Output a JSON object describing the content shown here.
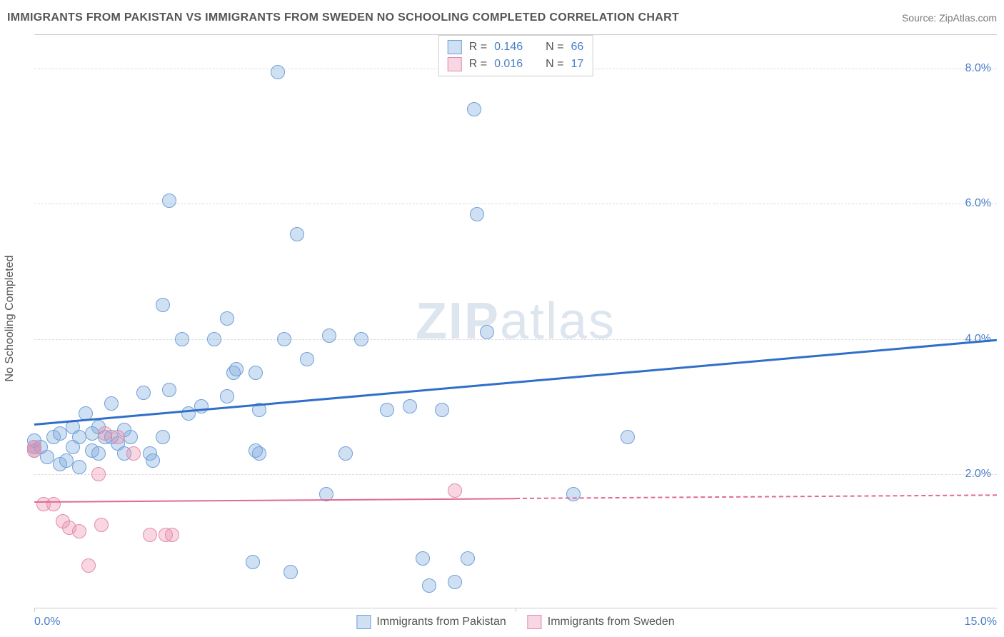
{
  "title": "IMMIGRANTS FROM PAKISTAN VS IMMIGRANTS FROM SWEDEN NO SCHOOLING COMPLETED CORRELATION CHART",
  "source": "Source: ZipAtlas.com",
  "watermark_bold": "ZIP",
  "watermark_light": "atlas",
  "chart": {
    "type": "scatter",
    "y_label": "No Schooling Completed",
    "xlim": [
      0.0,
      15.0
    ],
    "ylim": [
      0.0,
      8.5
    ],
    "x_tick_min_label": "0.0%",
    "x_tick_max_label": "15.0%",
    "x_tick_positions": [
      0.0,
      7.5
    ],
    "y_ticks": [
      {
        "v": 2.0,
        "label": "2.0%"
      },
      {
        "v": 4.0,
        "label": "4.0%"
      },
      {
        "v": 6.0,
        "label": "6.0%"
      },
      {
        "v": 8.0,
        "label": "8.0%"
      }
    ],
    "background_color": "#ffffff",
    "grid_color": "#dddddd",
    "point_radius": 10,
    "point_border_width": 1.5,
    "series": [
      {
        "name": "Immigrants from Pakistan",
        "fill_color": "rgba(120,165,220,0.35)",
        "stroke_color": "#6f9fd8",
        "swatch_fill": "#cfe0f4",
        "swatch_border": "#6f9fd8",
        "R_label": "R =",
        "R_value": "0.146",
        "N_label": "N =",
        "N_value": "66",
        "trend": {
          "y_at_xmin": 2.75,
          "y_at_xmax": 4.0,
          "color": "#2f6fc9",
          "width": 3,
          "dash": false
        },
        "points": [
          [
            0.0,
            2.35
          ],
          [
            0.0,
            2.5
          ],
          [
            0.0,
            2.4
          ],
          [
            0.1,
            2.4
          ],
          [
            0.2,
            2.25
          ],
          [
            0.3,
            2.55
          ],
          [
            0.4,
            2.15
          ],
          [
            0.4,
            2.6
          ],
          [
            0.5,
            2.2
          ],
          [
            0.6,
            2.7
          ],
          [
            0.6,
            2.4
          ],
          [
            0.7,
            2.1
          ],
          [
            0.7,
            2.55
          ],
          [
            0.8,
            2.9
          ],
          [
            0.9,
            2.35
          ],
          [
            0.9,
            2.6
          ],
          [
            1.0,
            2.3
          ],
          [
            1.0,
            2.7
          ],
          [
            1.1,
            2.55
          ],
          [
            1.2,
            3.05
          ],
          [
            1.2,
            2.55
          ],
          [
            1.3,
            2.45
          ],
          [
            1.4,
            2.65
          ],
          [
            1.4,
            2.3
          ],
          [
            1.5,
            2.55
          ],
          [
            1.7,
            3.2
          ],
          [
            1.8,
            2.3
          ],
          [
            1.85,
            2.2
          ],
          [
            2.0,
            4.5
          ],
          [
            2.0,
            2.55
          ],
          [
            2.1,
            3.25
          ],
          [
            2.1,
            6.05
          ],
          [
            2.3,
            4.0
          ],
          [
            2.4,
            2.9
          ],
          [
            2.6,
            3.0
          ],
          [
            2.8,
            4.0
          ],
          [
            3.0,
            3.15
          ],
          [
            3.0,
            4.3
          ],
          [
            3.1,
            3.5
          ],
          [
            3.15,
            3.55
          ],
          [
            3.4,
            0.7
          ],
          [
            3.45,
            2.35
          ],
          [
            3.45,
            3.5
          ],
          [
            3.5,
            2.95
          ],
          [
            3.5,
            2.3
          ],
          [
            3.8,
            7.95
          ],
          [
            3.9,
            4.0
          ],
          [
            4.0,
            0.55
          ],
          [
            4.1,
            5.55
          ],
          [
            4.25,
            3.7
          ],
          [
            4.55,
            1.7
          ],
          [
            4.6,
            4.05
          ],
          [
            4.85,
            2.3
          ],
          [
            5.1,
            4.0
          ],
          [
            5.5,
            2.95
          ],
          [
            5.85,
            3.0
          ],
          [
            6.05,
            0.75
          ],
          [
            6.15,
            0.35
          ],
          [
            6.35,
            2.95
          ],
          [
            6.55,
            0.4
          ],
          [
            6.75,
            0.75
          ],
          [
            6.85,
            7.4
          ],
          [
            6.9,
            5.85
          ],
          [
            7.05,
            4.1
          ],
          [
            8.4,
            1.7
          ],
          [
            9.25,
            2.55
          ]
        ]
      },
      {
        "name": "Immigrants from Sweden",
        "fill_color": "rgba(235,140,170,0.35)",
        "stroke_color": "#e48aab",
        "swatch_fill": "#f7d7e3",
        "swatch_border": "#e48aab",
        "R_label": "R =",
        "R_value": "0.016",
        "N_label": "N =",
        "N_value": "17",
        "trend": {
          "y_at_xmin": 1.6,
          "y_at_xmax": 1.7,
          "color": "#e06a95",
          "width": 2,
          "dash_after_x": 7.5
        },
        "points": [
          [
            0.0,
            2.35
          ],
          [
            0.0,
            2.4
          ],
          [
            0.15,
            1.55
          ],
          [
            0.3,
            1.55
          ],
          [
            0.45,
            1.3
          ],
          [
            0.55,
            1.2
          ],
          [
            0.7,
            1.15
          ],
          [
            0.85,
            0.65
          ],
          [
            1.0,
            2.0
          ],
          [
            1.05,
            1.25
          ],
          [
            1.1,
            2.6
          ],
          [
            1.3,
            2.55
          ],
          [
            1.55,
            2.3
          ],
          [
            1.8,
            1.1
          ],
          [
            2.05,
            1.1
          ],
          [
            2.15,
            1.1
          ],
          [
            6.55,
            1.75
          ]
        ]
      }
    ]
  }
}
